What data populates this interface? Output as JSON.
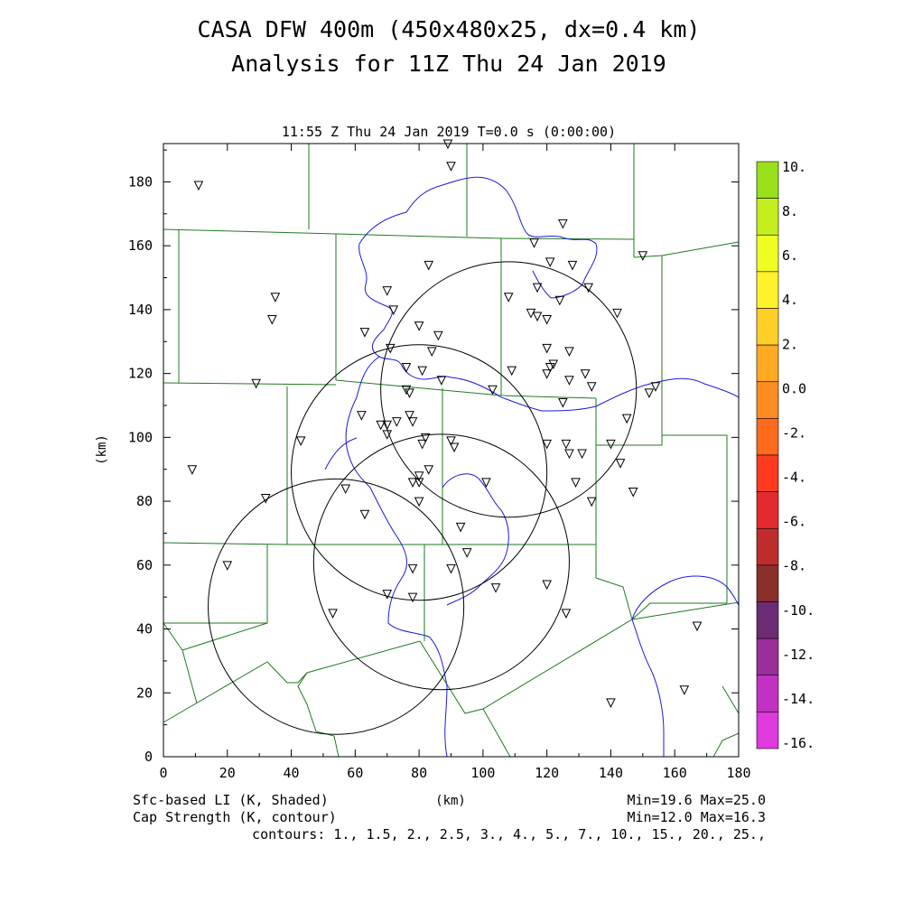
{
  "chart_data": {
    "type": "map",
    "title_line1": "CASA DFW 400m (450x480x25, dx=0.4 km)",
    "title_line2": "Analysis for 11Z Thu 24 Jan 2019",
    "subtitle": "11:55 Z Thu 24 Jan 2019   T=0.0 s (0:00:00)",
    "xlabel": "(km)",
    "ylabel": "(km)",
    "xlim": [
      0,
      180
    ],
    "ylim": [
      0,
      192
    ],
    "x_ticks": [
      "0",
      "20",
      "40",
      "60",
      "80",
      "100",
      "120",
      "140",
      "160",
      "180"
    ],
    "y_ticks": [
      "0",
      "20",
      "40",
      "60",
      "80",
      "100",
      "120",
      "140",
      "160",
      "180"
    ],
    "colorbar": {
      "labels": [
        "10.",
        "8.",
        "6.",
        "4.",
        "2.",
        "0.0",
        "-2.",
        "-4.",
        "-6.",
        "-8.",
        "-10.",
        "-12.",
        "-14.",
        "-16."
      ],
      "colors": [
        "#99e01a",
        "#c4ef1c",
        "#f0ff22",
        "#fff12b",
        "#ffcf28",
        "#ffaa22",
        "#ff8c1e",
        "#ff6a1c",
        "#ff3a1e",
        "#e52a2e",
        "#c02c2c",
        "#8a2f2a",
        "#6c2c74",
        "#9a2e9a",
        "#c232c2",
        "#de3ade"
      ]
    },
    "footer": {
      "left1": "Sfc-based LI (K, Shaded)",
      "left2": "Cap Strength (K, contour)",
      "center": "(km)",
      "right1": "Min=19.6 Max=25.0",
      "right2": "Min=12.0 Max=16.3",
      "contours": "contours: 1., 1.5, 2., 2.5, 3., 4., 5., 7., 10., 15., 20., 25.,"
    },
    "radar_rings": [
      {
        "cx": 108,
        "cy": 115,
        "r": 40
      },
      {
        "cx": 80,
        "cy": 89,
        "r": 40
      },
      {
        "cx": 87,
        "cy": 61,
        "r": 40
      },
      {
        "cx": 54,
        "cy": 47,
        "r": 40
      }
    ],
    "stations": [
      [
        89,
        192
      ],
      [
        90,
        185
      ],
      [
        11,
        179
      ],
      [
        125,
        167
      ],
      [
        116,
        161
      ],
      [
        121,
        155
      ],
      [
        83,
        154
      ],
      [
        128,
        154
      ],
      [
        150,
        157
      ],
      [
        35,
        144
      ],
      [
        34,
        137
      ],
      [
        70,
        146
      ],
      [
        108,
        144
      ],
      [
        117,
        147
      ],
      [
        124,
        143
      ],
      [
        133,
        147
      ],
      [
        72,
        140
      ],
      [
        115,
        139
      ],
      [
        117,
        138
      ],
      [
        120,
        137
      ],
      [
        142,
        139
      ],
      [
        63,
        133
      ],
      [
        80,
        135
      ],
      [
        86,
        132
      ],
      [
        71,
        128
      ],
      [
        84,
        127
      ],
      [
        120,
        128
      ],
      [
        127,
        127
      ],
      [
        76,
        122
      ],
      [
        81,
        121
      ],
      [
        87,
        118
      ],
      [
        109,
        121
      ],
      [
        120,
        120
      ],
      [
        121,
        122
      ],
      [
        122,
        123
      ],
      [
        127,
        118
      ],
      [
        132,
        120
      ],
      [
        29,
        117
      ],
      [
        76,
        115
      ],
      [
        77,
        114
      ],
      [
        134,
        116
      ],
      [
        152,
        114
      ],
      [
        154,
        116
      ],
      [
        103,
        115
      ],
      [
        125,
        111
      ],
      [
        62,
        107
      ],
      [
        68,
        104
      ],
      [
        70,
        104
      ],
      [
        70,
        101
      ],
      [
        73,
        105
      ],
      [
        77,
        107
      ],
      [
        78,
        105
      ],
      [
        145,
        106
      ],
      [
        43,
        99
      ],
      [
        81,
        98
      ],
      [
        82,
        100
      ],
      [
        90,
        99
      ],
      [
        91,
        97
      ],
      [
        120,
        98
      ],
      [
        126,
        98
      ],
      [
        127,
        95
      ],
      [
        131,
        95
      ],
      [
        140,
        98
      ],
      [
        143,
        92
      ],
      [
        9,
        90
      ],
      [
        78,
        86
      ],
      [
        80,
        86
      ],
      [
        80,
        88
      ],
      [
        83,
        90
      ],
      [
        101,
        86
      ],
      [
        129,
        86
      ],
      [
        147,
        83
      ],
      [
        57,
        84
      ],
      [
        32,
        81
      ],
      [
        80,
        80
      ],
      [
        134,
        80
      ],
      [
        63,
        76
      ],
      [
        93,
        72
      ],
      [
        95,
        64
      ],
      [
        20,
        60
      ],
      [
        78,
        59
      ],
      [
        90,
        59
      ],
      [
        120,
        54
      ],
      [
        104,
        53
      ],
      [
        70,
        51
      ],
      [
        78,
        50
      ],
      [
        126,
        45
      ],
      [
        53,
        45
      ],
      [
        167,
        41
      ],
      [
        140,
        17
      ],
      [
        163,
        21
      ]
    ]
  }
}
